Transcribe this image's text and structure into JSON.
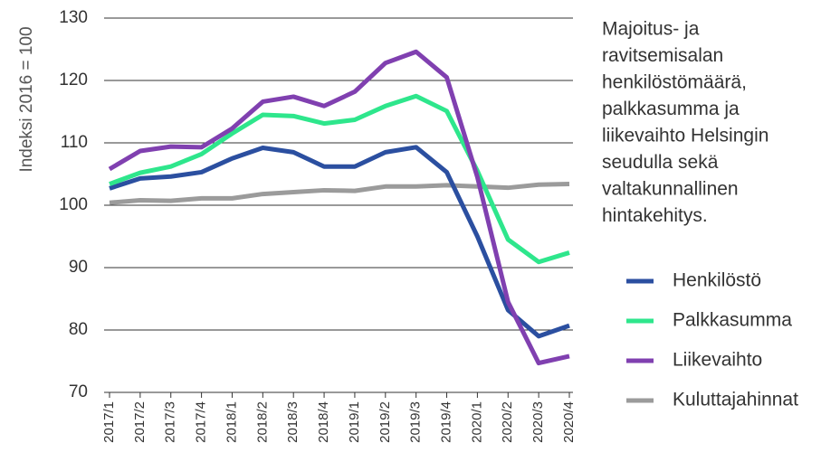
{
  "chart_data": {
    "type": "line",
    "title": [
      "Majoitus- ja",
      "ravitsemisalan",
      "henkilöstömäärä,",
      "palkkasumma ja",
      "liikevaihto Helsingin",
      "seudulla sekä",
      "valtakunnallinen",
      "hintakehitys."
    ],
    "y_label": "Indeksi 2016 = 100",
    "categories": [
      "2017/1",
      "2017/2",
      "2017/3",
      "2017/4",
      "2018/1",
      "2018/2",
      "2018/3",
      "2018/4",
      "2019/1",
      "2019/2",
      "2019/3",
      "2019/4",
      "2020/1",
      "2020/2",
      "2020/3",
      "2020/4"
    ],
    "series": [
      {
        "name": "Henkilöstö",
        "color": "#2b4fa0",
        "values": [
          102.7,
          104.3,
          104.6,
          105.3,
          107.5,
          109.2,
          108.5,
          106.2,
          106.2,
          108.5,
          109.3,
          105.3,
          95,
          83.2,
          79,
          80.7
        ]
      },
      {
        "name": "Palkkasumma",
        "color": "#2ee68c",
        "values": [
          103.4,
          105.2,
          106.2,
          108.2,
          111.5,
          114.5,
          114.3,
          113.1,
          113.7,
          115.9,
          117.5,
          115.1,
          105.5,
          94.5,
          90.9,
          92.4
        ]
      },
      {
        "name": "Liikevaihto",
        "color": "#8040b0",
        "values": [
          105.8,
          108.7,
          109.4,
          109.3,
          112.3,
          116.6,
          117.4,
          115.9,
          118.2,
          122.8,
          124.6,
          120.5,
          104.5,
          84.5,
          74.7,
          75.8
        ]
      },
      {
        "name": "Kuluttajahinnat",
        "color": "#9b9b9b",
        "values": [
          100.4,
          100.8,
          100.7,
          101.1,
          101.1,
          101.8,
          102.1,
          102.4,
          102.3,
          103,
          103,
          103.2,
          103,
          102.8,
          103.3,
          103.4
        ]
      }
    ],
    "ylim": [
      70,
      130
    ],
    "yticks": [
      70,
      80,
      90,
      100,
      110,
      120,
      130
    ],
    "grid": true,
    "legend": "right"
  }
}
